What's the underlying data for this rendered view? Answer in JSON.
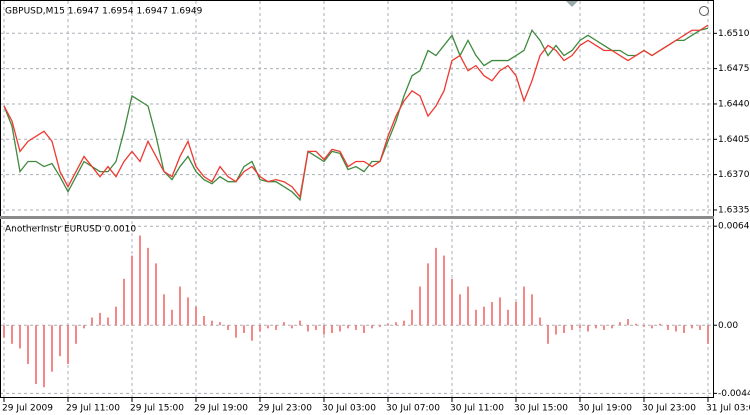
{
  "chart_data": [
    {
      "type": "line",
      "title": "GBPUSD,M15  1.6947 1.6954 1.6947 1.6949",
      "ylim": [
        1.633,
        1.6543
      ],
      "yticks": [
        {
          "value": 1.651,
          "label": "1.6510"
        },
        1.6475,
        {
          "value": 1.644,
          "label": "1.6440"
        },
        1.6405,
        {
          "value": 1.637,
          "label": "1.6370"
        },
        1.6335
      ],
      "grid": true,
      "series": [
        {
          "color": "#3f8a3f",
          "values": [
            1.6438,
            1.6418,
            1.6373,
            1.6383,
            1.6383,
            1.6378,
            1.6381,
            1.6368,
            1.6353,
            1.6368,
            1.6383,
            1.6378,
            1.6373,
            1.6373,
            1.6383,
            1.6413,
            1.6448,
            1.6443,
            1.6438,
            1.6408,
            1.6373,
            1.6365,
            1.6378,
            1.6388,
            1.6373,
            1.6365,
            1.6361,
            1.6368,
            1.6363,
            1.6363,
            1.6378,
            1.6383,
            1.6365,
            1.6363,
            1.6363,
            1.6358,
            1.6353,
            1.6345,
            1.6393,
            1.6388,
            1.6383,
            1.6393,
            1.6391,
            1.6375,
            1.6378,
            1.6373,
            1.6383,
            1.6383,
            1.6403,
            1.6423,
            1.6448,
            1.6468,
            1.6473,
            1.6493,
            1.6488,
            1.6498,
            1.6508,
            1.6488,
            1.6503,
            1.6488,
            1.6478,
            1.6483,
            1.6483,
            1.6483,
            1.6488,
            1.6493,
            1.6513,
            1.6503,
            1.6488,
            1.6498,
            1.6488,
            1.6493,
            1.6503,
            1.6508,
            1.6503,
            1.6498,
            1.6493,
            1.6493,
            1.6488,
            1.6488,
            1.6493,
            1.6488,
            1.6493,
            1.6498,
            1.6503,
            1.6503,
            1.6508,
            1.6513,
            1.6515
          ]
        },
        {
          "color": "#ee3a32",
          "values": [
            1.6438,
            1.6423,
            1.6393,
            1.6403,
            1.6408,
            1.6413,
            1.6403,
            1.6373,
            1.6358,
            1.6373,
            1.6388,
            1.6378,
            1.6368,
            1.6378,
            1.6368,
            1.6383,
            1.6393,
            1.6383,
            1.6403,
            1.6388,
            1.6373,
            1.6368,
            1.6388,
            1.6403,
            1.6378,
            1.6368,
            1.6363,
            1.6378,
            1.6368,
            1.6363,
            1.6373,
            1.6378,
            1.6368,
            1.6363,
            1.6365,
            1.6363,
            1.6358,
            1.6348,
            1.6393,
            1.6393,
            1.6385,
            1.6395,
            1.6393,
            1.6378,
            1.6383,
            1.6383,
            1.6378,
            1.6383,
            1.6408,
            1.6428,
            1.6443,
            1.6453,
            1.6448,
            1.6428,
            1.6438,
            1.6453,
            1.6483,
            1.6488,
            1.6473,
            1.6478,
            1.6468,
            1.6463,
            1.6473,
            1.6478,
            1.6468,
            1.6443,
            1.6463,
            1.6488,
            1.6498,
            1.6493,
            1.6483,
            1.6488,
            1.6498,
            1.6503,
            1.6498,
            1.6493,
            1.6493,
            1.6488,
            1.6483,
            1.6488,
            1.6493,
            1.6488,
            1.6493,
            1.6498,
            1.6503,
            1.6508,
            1.6513,
            1.6513,
            1.6518
          ]
        }
      ]
    },
    {
      "type": "bar",
      "title": "AnotherInstr EURUSD 0.0010",
      "ylim": [
        -0.0047,
        0.0068
      ],
      "yticks": [
        0.0064,
        {
          "value": 0,
          "label": "0.00"
        },
        -0.0044
      ],
      "grid": true,
      "color": "#f06a6a",
      "categories": [
        "29 Jul 2009",
        null,
        null,
        null,
        null,
        null,
        null,
        null,
        "29 Jul 11:00",
        null,
        null,
        null,
        null,
        null,
        null,
        null,
        "29 Jul 15:00",
        null,
        null,
        null,
        null,
        null,
        null,
        null,
        "29 Jul 19:00",
        null,
        null,
        null,
        null,
        null,
        null,
        null,
        "29 Jul 23:00",
        null,
        null,
        null,
        null,
        null,
        null,
        null,
        "30 Jul 03:00",
        null,
        null,
        null,
        null,
        null,
        null,
        null,
        "30 Jul 07:00",
        null,
        null,
        null,
        null,
        null,
        null,
        null,
        "30 Jul 11:00",
        null,
        null,
        null,
        null,
        null,
        null,
        null,
        "30 Jul 15:00",
        null,
        null,
        null,
        null,
        null,
        null,
        null,
        "30 Jul 19:00",
        null,
        null,
        null,
        null,
        null,
        null,
        null,
        "30 Jul 23:00",
        null,
        null,
        null,
        null,
        null,
        null,
        null,
        "31 Jul 03:00"
      ],
      "values": [
        -0.0008,
        -0.0012,
        -0.0015,
        -0.0025,
        -0.0038,
        -0.004,
        -0.003,
        -0.002,
        -0.0025,
        -0.0012,
        -0.0002,
        0.0005,
        0.0008,
        0.0005,
        0.0012,
        0.003,
        0.0045,
        0.0058,
        0.005,
        0.004,
        0.002,
        0.001,
        0.0025,
        0.0018,
        0.0012,
        0.0006,
        0.0003,
        0.0002,
        -0.0003,
        -0.0008,
        -0.0005,
        -0.001,
        -0.0004,
        -0.0002,
        -0.0003,
        0.0002,
        -0.0002,
        0.0003,
        -0.0004,
        -0.0003,
        -0.0006,
        -0.0005,
        -0.0004,
        -0.0002,
        -0.0003,
        -0.0005,
        -0.0002,
        -0.0001,
        0.0001,
        0.0002,
        0.0003,
        0.001,
        0.0025,
        0.004,
        0.005,
        0.0045,
        0.003,
        0.002,
        0.0025,
        0.001,
        0.0012,
        0.0015,
        0.0018,
        0.001,
        0.0015,
        0.0025,
        0.002,
        0.0005,
        -0.0012,
        -0.0006,
        -0.0005,
        -0.0003,
        -0.0002,
        -0.0004,
        -0.0002,
        -0.0003,
        -0.0002,
        0.0002,
        0.0004,
        0.0001,
        -0.0001,
        -0.0002,
        0.0001,
        -0.0003,
        -0.0004,
        -0.0005,
        -0.0002,
        -0.0003,
        -0.0012
      ]
    }
  ]
}
